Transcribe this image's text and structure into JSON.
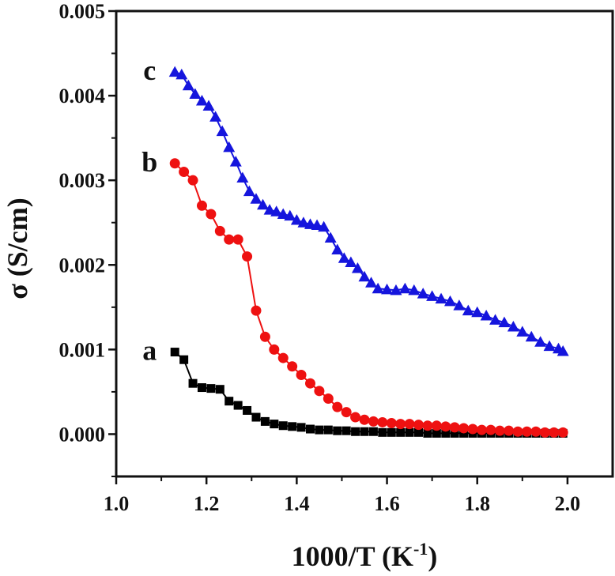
{
  "chart_data": {
    "type": "scatter",
    "title": "",
    "xlabel": "1000/T (K",
    "xlabel_sup": "-1",
    "xlabel_suffix": ")",
    "ylabel": "σ (S/cm)",
    "xlim": [
      1.0,
      2.1
    ],
    "ylim": [
      -0.0005,
      0.005
    ],
    "xticks": [
      1.0,
      1.2,
      1.4,
      1.6,
      1.8,
      2.0
    ],
    "xtick_labels": [
      "1.0",
      "1.2",
      "1.4",
      "1.6",
      "1.8",
      "2.0"
    ],
    "yticks": [
      0.0,
      0.001,
      0.002,
      0.003,
      0.004,
      0.005
    ],
    "ytick_labels": [
      "0.000",
      "0.001",
      "0.002",
      "0.003",
      "0.004",
      "0.005"
    ],
    "series": [
      {
        "name": "a",
        "label": "a",
        "color": "#000000",
        "marker": "square",
        "x": [
          1.13,
          1.15,
          1.17,
          1.19,
          1.21,
          1.23,
          1.25,
          1.27,
          1.29,
          1.31,
          1.33,
          1.35,
          1.37,
          1.39,
          1.41,
          1.43,
          1.45,
          1.47,
          1.49,
          1.51,
          1.53,
          1.55,
          1.57,
          1.59,
          1.61,
          1.63,
          1.65,
          1.67,
          1.69,
          1.71,
          1.73,
          1.75,
          1.77,
          1.79,
          1.81,
          1.83,
          1.85,
          1.87,
          1.89,
          1.91,
          1.93,
          1.95,
          1.97,
          1.99
        ],
        "y": [
          0.00097,
          0.00088,
          0.0006,
          0.00055,
          0.00054,
          0.00053,
          0.00039,
          0.00034,
          0.00028,
          0.0002,
          0.00015,
          0.00012,
          0.0001,
          9e-05,
          8e-05,
          6e-05,
          5e-05,
          5e-05,
          4e-05,
          4e-05,
          3e-05,
          3e-05,
          3e-05,
          2e-05,
          2e-05,
          2e-05,
          2e-05,
          2e-05,
          1e-05,
          1e-05,
          1e-05,
          1e-05,
          1e-05,
          1e-05,
          1e-05,
          1e-05,
          1e-05,
          1e-05,
          1e-05,
          1e-05,
          1e-05,
          1e-05,
          1e-05,
          1e-05
        ]
      },
      {
        "name": "b",
        "label": "b",
        "color": "#ee1111",
        "marker": "circle",
        "x": [
          1.13,
          1.15,
          1.17,
          1.19,
          1.21,
          1.23,
          1.25,
          1.27,
          1.29,
          1.31,
          1.33,
          1.35,
          1.37,
          1.39,
          1.41,
          1.43,
          1.45,
          1.47,
          1.49,
          1.51,
          1.53,
          1.55,
          1.57,
          1.59,
          1.61,
          1.63,
          1.65,
          1.67,
          1.69,
          1.71,
          1.73,
          1.75,
          1.77,
          1.79,
          1.81,
          1.83,
          1.85,
          1.87,
          1.89,
          1.91,
          1.93,
          1.95,
          1.97,
          1.99
        ],
        "y": [
          0.0032,
          0.0031,
          0.003,
          0.0027,
          0.0026,
          0.0024,
          0.0023,
          0.0023,
          0.0021,
          0.00146,
          0.00115,
          0.001,
          0.0009,
          0.0008,
          0.0007,
          0.0006,
          0.00051,
          0.00042,
          0.00032,
          0.00026,
          0.0002,
          0.00017,
          0.00015,
          0.00014,
          0.00013,
          0.00012,
          0.00012,
          0.00011,
          0.0001,
          0.0001,
          9e-05,
          8e-05,
          7e-05,
          6e-05,
          5e-05,
          5e-05,
          4e-05,
          4e-05,
          3e-05,
          3e-05,
          3e-05,
          2e-05,
          2e-05,
          2e-05
        ]
      },
      {
        "name": "c",
        "label": "c",
        "color": "#1515dd",
        "marker": "triangle",
        "x": [
          1.13,
          1.145,
          1.16,
          1.175,
          1.19,
          1.205,
          1.22,
          1.235,
          1.25,
          1.265,
          1.28,
          1.295,
          1.31,
          1.325,
          1.34,
          1.355,
          1.37,
          1.385,
          1.4,
          1.415,
          1.43,
          1.445,
          1.46,
          1.475,
          1.49,
          1.505,
          1.52,
          1.535,
          1.55,
          1.565,
          1.58,
          1.6,
          1.62,
          1.64,
          1.66,
          1.68,
          1.7,
          1.72,
          1.74,
          1.76,
          1.78,
          1.8,
          1.82,
          1.84,
          1.86,
          1.88,
          1.9,
          1.92,
          1.94,
          1.96,
          1.98,
          1.99
        ],
        "y": [
          0.00428,
          0.00425,
          0.00412,
          0.00402,
          0.00394,
          0.00388,
          0.00375,
          0.00358,
          0.00339,
          0.00322,
          0.00303,
          0.00287,
          0.00278,
          0.00271,
          0.00265,
          0.00263,
          0.0026,
          0.00258,
          0.00253,
          0.0025,
          0.00248,
          0.00247,
          0.00245,
          0.00232,
          0.00218,
          0.00208,
          0.00203,
          0.00196,
          0.00186,
          0.00179,
          0.00172,
          0.00171,
          0.0017,
          0.00172,
          0.0017,
          0.00166,
          0.00163,
          0.0016,
          0.00157,
          0.00152,
          0.00146,
          0.00144,
          0.0014,
          0.00135,
          0.00132,
          0.00127,
          0.00121,
          0.00115,
          0.00109,
          0.00104,
          0.00101,
          0.00098
        ]
      }
    ]
  }
}
